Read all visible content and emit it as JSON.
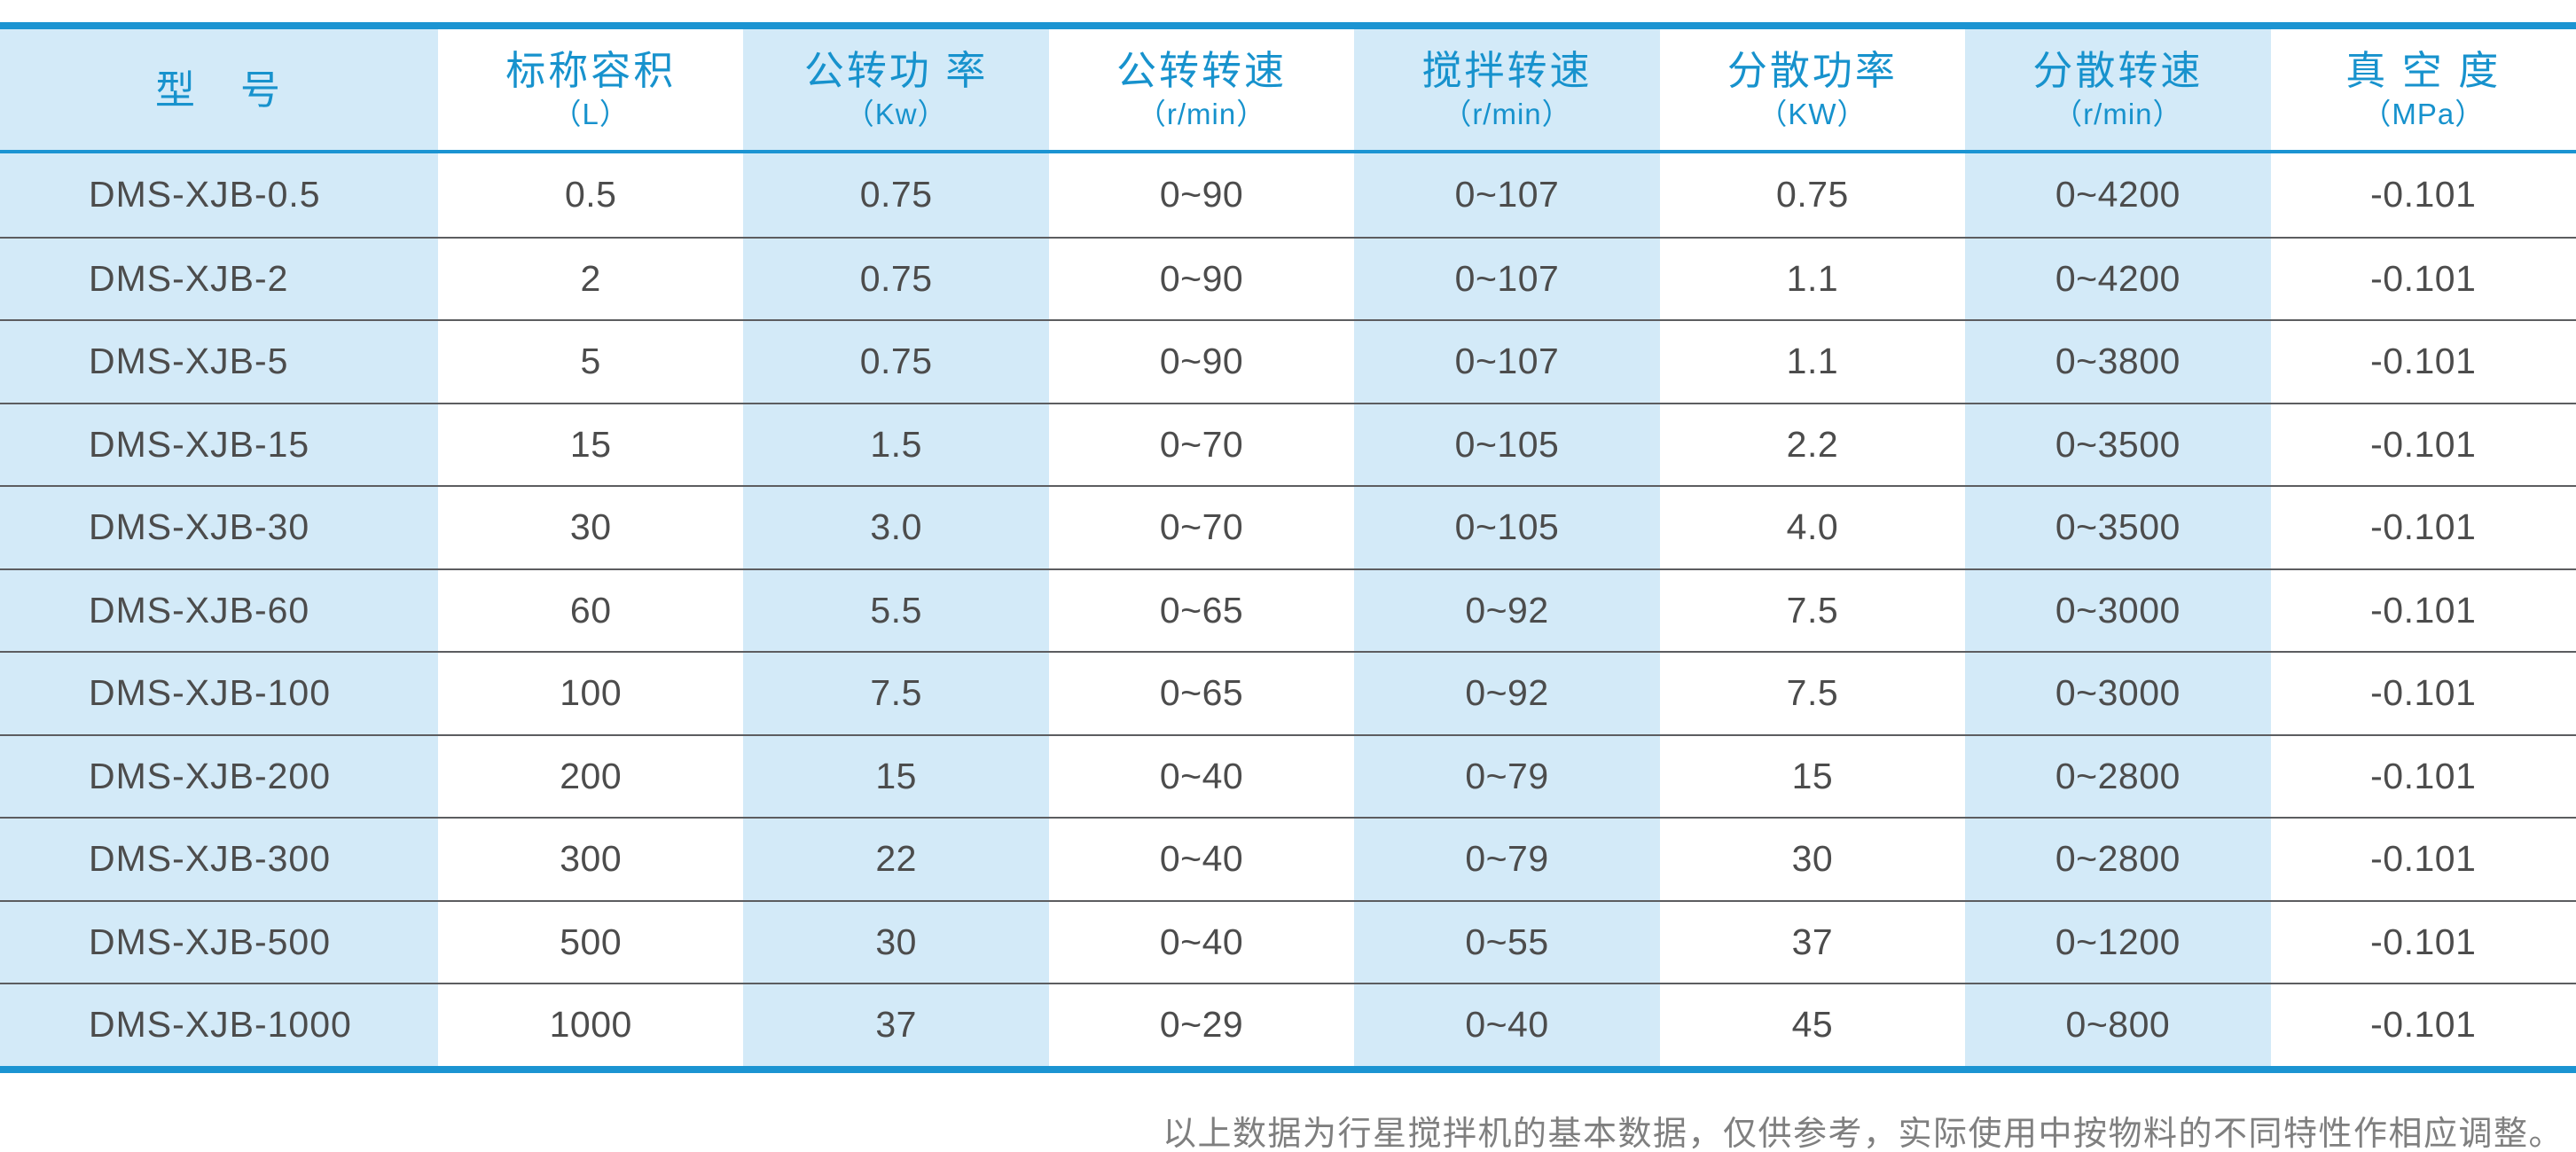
{
  "chart_data": {
    "type": "table",
    "title": "",
    "columns": [
      {
        "label": "型　号",
        "unit": ""
      },
      {
        "label": "标称容积",
        "unit": "（L）"
      },
      {
        "label": "公转功 率",
        "unit": "（Kw）"
      },
      {
        "label": "公转转速",
        "unit": "（r/min）"
      },
      {
        "label": "搅拌转速",
        "unit": "（r/min）"
      },
      {
        "label": "分散功率",
        "unit": "（KW）"
      },
      {
        "label": "分散转速",
        "unit": "（r/min）"
      },
      {
        "label": "真 空 度",
        "unit": "（MPa）"
      }
    ],
    "rows": [
      [
        "DMS-XJB-0.5",
        "0.5",
        "0.75",
        "0~90",
        "0~107",
        "0.75",
        "0~4200",
        "-0.101"
      ],
      [
        "DMS-XJB-2",
        "2",
        "0.75",
        "0~90",
        "0~107",
        "1.1",
        "0~4200",
        "-0.101"
      ],
      [
        "DMS-XJB-5",
        "5",
        "0.75",
        "0~90",
        "0~107",
        "1.1",
        "0~3800",
        "-0.101"
      ],
      [
        "DMS-XJB-15",
        "15",
        "1.5",
        "0~70",
        "0~105",
        "2.2",
        "0~3500",
        "-0.101"
      ],
      [
        "DMS-XJB-30",
        "30",
        "3.0",
        "0~70",
        "0~105",
        "4.0",
        "0~3500",
        "-0.101"
      ],
      [
        "DMS-XJB-60",
        "60",
        "5.5",
        "0~65",
        "0~92",
        "7.5",
        "0~3000",
        "-0.101"
      ],
      [
        "DMS-XJB-100",
        "100",
        "7.5",
        "0~65",
        "0~92",
        "7.5",
        "0~3000",
        "-0.101"
      ],
      [
        "DMS-XJB-200",
        "200",
        "15",
        "0~40",
        "0~79",
        "15",
        "0~2800",
        "-0.101"
      ],
      [
        "DMS-XJB-300",
        "300",
        "22",
        "0~40",
        "0~79",
        "30",
        "0~2800",
        "-0.101"
      ],
      [
        "DMS-XJB-500",
        "500",
        "30",
        "0~40",
        "0~55",
        "37",
        "0~1200",
        "-0.101"
      ],
      [
        "DMS-XJB-1000",
        "1000",
        "37",
        "0~29",
        "0~40",
        "45",
        "0~800",
        "-0.101"
      ]
    ],
    "footnote": "以上数据为行星搅拌机的基本数据，仅供参考，实际使用中按物料的不同特性作相应调整。"
  },
  "colors": {
    "accent_blue": "#1b94d2",
    "header_text_blue": "#1792cd",
    "stripe_light_blue": "#d3eaf8",
    "data_text_gray": "#4c4c4c",
    "row_separator_gray": "#5c5d60",
    "footnote_gray": "#7f7f7f"
  }
}
